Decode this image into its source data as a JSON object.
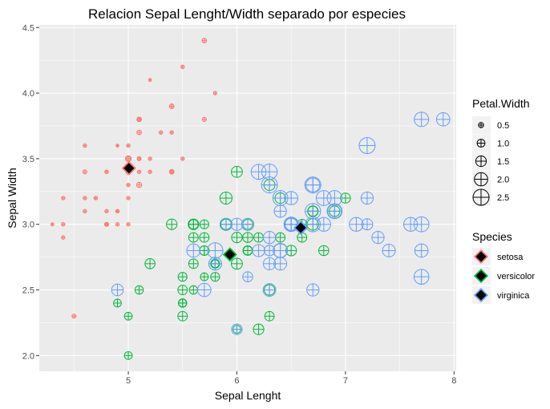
{
  "chart_data": {
    "type": "scatter",
    "title": "Relacion Sepal Lenght/Width separado por especies",
    "xlabel": "Sepal Lenght",
    "ylabel": "Sepal Width",
    "xlim": [
      4.18,
      8.02
    ],
    "ylim": [
      1.88,
      4.52
    ],
    "xticks": [
      5,
      6,
      7,
      8
    ],
    "yticks": [
      2.0,
      2.5,
      3.0,
      3.5,
      4.0,
      4.5
    ],
    "xtick_labels": [
      "5",
      "6",
      "7",
      "8"
    ],
    "ytick_labels": [
      "2.0",
      "2.5",
      "3.0",
      "3.5",
      "4.0",
      "4.5"
    ],
    "grid": true,
    "legend_position": "right",
    "colors": {
      "setosa": "#F8766D",
      "versicolor": "#00BA38",
      "virginica": "#619CFF",
      "panel": "#EBEBEB",
      "grid": "#FFFFFF"
    },
    "legend": {
      "size_title": "Petal.Width",
      "size_entries": [
        {
          "label": "0.5",
          "value": 0.5
        },
        {
          "label": "1.0",
          "value": 1.0
        },
        {
          "label": "1.5",
          "value": 1.5
        },
        {
          "label": "2.0",
          "value": 2.0
        },
        {
          "label": "2.5",
          "value": 2.5
        }
      ],
      "color_title": "Species",
      "color_entries": [
        {
          "label": "setosa",
          "color": "#F8766D"
        },
        {
          "label": "versicolor",
          "color": "#00BA38"
        },
        {
          "label": "virginica",
          "color": "#619CFF"
        }
      ]
    },
    "series": [
      {
        "name": "setosa",
        "color": "#F8766D",
        "points": [
          [
            5.1,
            3.5,
            0.2
          ],
          [
            4.9,
            3.0,
            0.2
          ],
          [
            4.7,
            3.2,
            0.2
          ],
          [
            4.6,
            3.1,
            0.2
          ],
          [
            5.0,
            3.6,
            0.2
          ],
          [
            5.4,
            3.9,
            0.4
          ],
          [
            4.6,
            3.4,
            0.3
          ],
          [
            5.0,
            3.4,
            0.2
          ],
          [
            4.4,
            2.9,
            0.2
          ],
          [
            4.9,
            3.1,
            0.1
          ],
          [
            5.4,
            3.7,
            0.2
          ],
          [
            4.8,
            3.4,
            0.2
          ],
          [
            4.8,
            3.0,
            0.1
          ],
          [
            4.3,
            3.0,
            0.1
          ],
          [
            5.8,
            4.0,
            0.2
          ],
          [
            5.7,
            4.4,
            0.4
          ],
          [
            5.4,
            3.9,
            0.4
          ],
          [
            5.1,
            3.5,
            0.3
          ],
          [
            5.7,
            3.8,
            0.3
          ],
          [
            5.1,
            3.8,
            0.3
          ],
          [
            5.4,
            3.4,
            0.2
          ],
          [
            5.1,
            3.7,
            0.4
          ],
          [
            4.6,
            3.6,
            0.2
          ],
          [
            5.1,
            3.3,
            0.5
          ],
          [
            4.8,
            3.4,
            0.2
          ],
          [
            5.0,
            3.0,
            0.2
          ],
          [
            5.0,
            3.4,
            0.4
          ],
          [
            5.2,
            3.5,
            0.2
          ],
          [
            5.2,
            3.4,
            0.2
          ],
          [
            4.7,
            3.2,
            0.2
          ],
          [
            4.8,
            3.1,
            0.2
          ],
          [
            5.4,
            3.4,
            0.4
          ],
          [
            5.2,
            4.1,
            0.1
          ],
          [
            5.5,
            4.2,
            0.2
          ],
          [
            4.9,
            3.1,
            0.2
          ],
          [
            5.0,
            3.2,
            0.2
          ],
          [
            5.5,
            3.5,
            0.2
          ],
          [
            4.9,
            3.6,
            0.1
          ],
          [
            4.4,
            3.0,
            0.2
          ],
          [
            5.1,
            3.4,
            0.2
          ],
          [
            5.0,
            3.5,
            0.3
          ],
          [
            4.5,
            2.3,
            0.3
          ],
          [
            4.4,
            3.2,
            0.2
          ],
          [
            5.0,
            3.5,
            0.6
          ],
          [
            5.1,
            3.8,
            0.4
          ],
          [
            4.8,
            3.0,
            0.3
          ],
          [
            5.1,
            3.8,
            0.2
          ],
          [
            4.6,
            3.2,
            0.2
          ],
          [
            5.3,
            3.7,
            0.2
          ],
          [
            5.0,
            3.3,
            0.2
          ]
        ]
      },
      {
        "name": "versicolor",
        "color": "#00BA38",
        "points": [
          [
            7.0,
            3.2,
            1.4
          ],
          [
            6.4,
            3.2,
            1.5
          ],
          [
            6.9,
            3.1,
            1.5
          ],
          [
            5.5,
            2.3,
            1.3
          ],
          [
            6.5,
            2.8,
            1.5
          ],
          [
            5.7,
            2.8,
            1.3
          ],
          [
            6.3,
            3.3,
            1.6
          ],
          [
            4.9,
            2.4,
            1.0
          ],
          [
            6.6,
            2.9,
            1.3
          ],
          [
            5.2,
            2.7,
            1.4
          ],
          [
            5.0,
            2.0,
            1.0
          ],
          [
            5.9,
            3.0,
            1.5
          ],
          [
            6.0,
            2.2,
            1.0
          ],
          [
            6.1,
            2.9,
            1.4
          ],
          [
            5.6,
            2.9,
            1.3
          ],
          [
            6.7,
            3.1,
            1.4
          ],
          [
            5.6,
            3.0,
            1.5
          ],
          [
            5.8,
            2.7,
            1.0
          ],
          [
            6.2,
            2.2,
            1.5
          ],
          [
            5.6,
            2.5,
            1.1
          ],
          [
            5.9,
            3.2,
            1.8
          ],
          [
            6.1,
            2.8,
            1.3
          ],
          [
            6.3,
            2.5,
            1.5
          ],
          [
            6.1,
            2.8,
            1.2
          ],
          [
            6.4,
            2.9,
            1.3
          ],
          [
            6.6,
            3.0,
            1.4
          ],
          [
            6.8,
            2.8,
            1.4
          ],
          [
            6.7,
            3.0,
            1.7
          ],
          [
            6.0,
            2.9,
            1.5
          ],
          [
            5.7,
            2.6,
            1.0
          ],
          [
            5.5,
            2.4,
            1.1
          ],
          [
            5.5,
            2.4,
            1.0
          ],
          [
            5.8,
            2.7,
            1.2
          ],
          [
            6.0,
            2.7,
            1.6
          ],
          [
            5.4,
            3.0,
            1.5
          ],
          [
            6.0,
            3.4,
            1.6
          ],
          [
            6.7,
            3.1,
            1.5
          ],
          [
            6.3,
            2.3,
            1.3
          ],
          [
            5.6,
            3.0,
            1.3
          ],
          [
            5.5,
            2.5,
            1.3
          ],
          [
            5.5,
            2.6,
            1.2
          ],
          [
            6.1,
            3.0,
            1.4
          ],
          [
            5.8,
            2.6,
            1.2
          ],
          [
            5.0,
            2.3,
            1.0
          ],
          [
            5.6,
            2.7,
            1.3
          ],
          [
            5.7,
            3.0,
            1.2
          ],
          [
            5.7,
            2.9,
            1.3
          ],
          [
            6.2,
            2.9,
            1.3
          ],
          [
            5.1,
            2.5,
            1.1
          ],
          [
            5.7,
            2.8,
            1.3
          ]
        ]
      },
      {
        "name": "virginica",
        "color": "#619CFF",
        "points": [
          [
            6.3,
            3.3,
            2.5
          ],
          [
            5.8,
            2.7,
            1.9
          ],
          [
            7.1,
            3.0,
            2.1
          ],
          [
            6.3,
            2.9,
            1.8
          ],
          [
            6.5,
            3.0,
            2.2
          ],
          [
            7.6,
            3.0,
            2.1
          ],
          [
            4.9,
            2.5,
            1.7
          ],
          [
            7.3,
            2.9,
            1.8
          ],
          [
            6.7,
            2.5,
            1.8
          ],
          [
            7.2,
            3.6,
            2.5
          ],
          [
            6.5,
            3.2,
            2.0
          ],
          [
            6.4,
            2.7,
            1.9
          ],
          [
            6.8,
            3.0,
            2.1
          ],
          [
            5.7,
            2.5,
            2.0
          ],
          [
            5.8,
            2.8,
            2.4
          ],
          [
            6.4,
            3.2,
            2.3
          ],
          [
            6.5,
            3.0,
            1.8
          ],
          [
            7.7,
            3.8,
            2.2
          ],
          [
            7.7,
            2.6,
            2.3
          ],
          [
            6.0,
            2.2,
            1.5
          ],
          [
            6.9,
            3.2,
            2.3
          ],
          [
            5.6,
            2.8,
            2.0
          ],
          [
            7.7,
            2.8,
            2.0
          ],
          [
            6.3,
            2.7,
            1.8
          ],
          [
            6.7,
            3.3,
            2.1
          ],
          [
            7.2,
            3.2,
            1.8
          ],
          [
            6.2,
            2.8,
            1.8
          ],
          [
            6.1,
            3.0,
            1.8
          ],
          [
            6.4,
            2.8,
            2.1
          ],
          [
            7.2,
            3.0,
            1.6
          ],
          [
            7.4,
            2.8,
            1.9
          ],
          [
            7.9,
            3.8,
            2.0
          ],
          [
            6.4,
            2.8,
            2.2
          ],
          [
            6.3,
            2.8,
            1.5
          ],
          [
            6.1,
            2.6,
            1.4
          ],
          [
            7.7,
            3.0,
            2.3
          ],
          [
            6.3,
            3.4,
            2.4
          ],
          [
            6.4,
            3.1,
            1.8
          ],
          [
            6.0,
            3.0,
            1.8
          ],
          [
            6.9,
            3.1,
            2.1
          ],
          [
            6.7,
            3.1,
            2.4
          ],
          [
            6.9,
            3.1,
            2.3
          ],
          [
            5.8,
            2.7,
            1.9
          ],
          [
            6.8,
            3.2,
            2.3
          ],
          [
            6.7,
            3.3,
            2.5
          ],
          [
            6.7,
            3.0,
            2.3
          ],
          [
            6.3,
            2.5,
            1.9
          ],
          [
            6.5,
            3.0,
            2.0
          ],
          [
            6.2,
            3.4,
            2.3
          ],
          [
            5.9,
            3.0,
            1.8
          ]
        ]
      }
    ],
    "means": [
      {
        "name": "setosa",
        "x": 5.006,
        "y": 3.428,
        "color": "#F8766D"
      },
      {
        "name": "versicolor",
        "x": 5.936,
        "y": 2.77,
        "color": "#00BA38"
      },
      {
        "name": "virginica",
        "x": 6.588,
        "y": 2.974,
        "color": "#619CFF"
      }
    ]
  }
}
